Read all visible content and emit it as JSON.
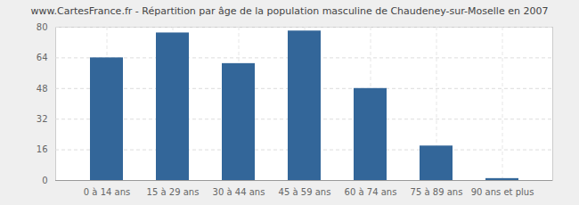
{
  "chart_data": {
    "type": "bar",
    "title": "www.CartesFrance.fr - Répartition par âge de la population masculine de Chaudeney-sur-Moselle en 2007",
    "categories": [
      "0 à 14 ans",
      "15 à 29 ans",
      "30 à 44 ans",
      "45 à 59 ans",
      "60 à 74 ans",
      "75 à 89 ans",
      "90 ans et plus"
    ],
    "values": [
      64,
      77,
      61,
      78,
      48,
      18,
      1
    ],
    "color": "#336699",
    "ylim": [
      0,
      80
    ],
    "yticks": [
      0,
      16,
      32,
      48,
      64,
      80
    ],
    "grid": true
  }
}
